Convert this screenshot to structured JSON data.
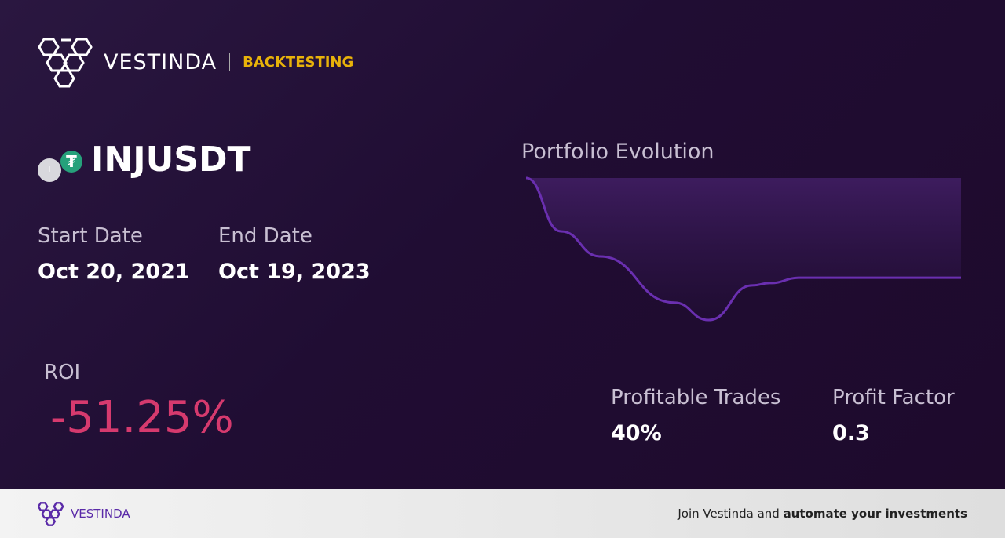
{
  "header": {
    "brand": "VESTINDA",
    "section": "BACKTESTING",
    "logo_icon": "hexagon-cluster-logo"
  },
  "pair": {
    "symbol": "INJUSDT",
    "base_icon_letter": "I",
    "quote_icon": "tether-icon",
    "quote_icon_glyph": "₮"
  },
  "dates": {
    "start_label": "Start Date",
    "start_value": "Oct 20, 2021",
    "end_label": "End Date",
    "end_value": "Oct 19, 2023"
  },
  "roi": {
    "label": "ROI",
    "value": "-51.25%",
    "color": "#d63a6e"
  },
  "stats": {
    "profitable_label": "Profitable Trades",
    "profitable_value": "40%",
    "factor_label": "Profit Factor",
    "factor_value": "0.3"
  },
  "chart_data": {
    "type": "area",
    "title": "Portfolio Evolution",
    "line_color": "#6a2fb0",
    "x": [
      0,
      8,
      17,
      34,
      42,
      52,
      56,
      63,
      100
    ],
    "values": [
      100,
      72.6,
      59.7,
      36,
      27,
      44.8,
      46,
      48.75,
      48.75
    ]
  },
  "footer": {
    "brand": "VESTINDA",
    "cta_prefix": "Join Vestinda and ",
    "cta_bold": "automate your investments"
  }
}
